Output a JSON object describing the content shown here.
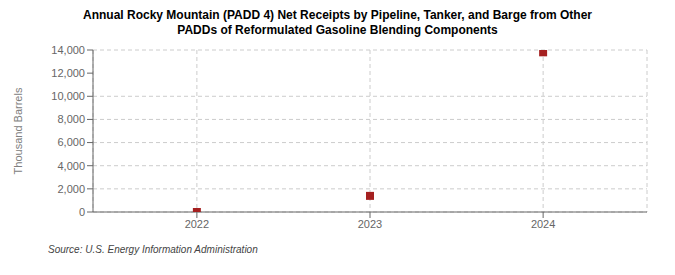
{
  "chart_data": {
    "type": "scatter",
    "title": "Annual Rocky Mountain (PADD 4) Net Receipts by Pipeline, Tanker, and Barge from Other\nPADDs of Reformulated Gasoline Blending Components",
    "ylabel": "Thousand Barrels",
    "source": "Source: U.S. Energy Information Administration",
    "x": [
      2022,
      2023,
      2024
    ],
    "values": [
      0,
      1393,
      13799
    ],
    "color": "#a52020",
    "marker": "square",
    "xlim": [
      2021.4,
      2024.6
    ],
    "ylim": [
      0,
      14000
    ],
    "xticks": [
      2022,
      2023,
      2024
    ],
    "yticks": [
      0,
      {
        "value": 2000,
        "label": "2,000"
      },
      {
        "value": 4000,
        "label": "4,000"
      },
      {
        "value": 6000,
        "label": "6,000"
      },
      {
        "value": 8000,
        "label": "8,000"
      },
      {
        "value": 10000,
        "label": "10,000"
      },
      {
        "value": 12000,
        "label": "12,000"
      },
      {
        "value": 14000,
        "label": "14,000"
      }
    ],
    "grid": true
  }
}
